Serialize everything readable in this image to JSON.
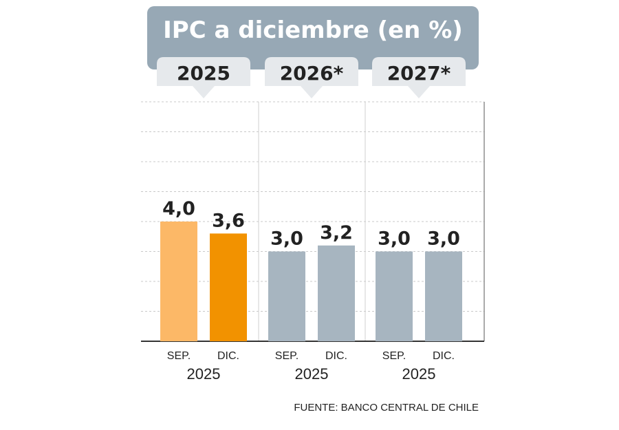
{
  "chart_data": {
    "type": "bar",
    "title": "IPC a diciembre (en %)",
    "groups": [
      {
        "label": "2025",
        "bars": [
          {
            "category": "SEP.",
            "year": "2025",
            "value": 4.0,
            "value_label": "4,0",
            "color": "#FCB867"
          },
          {
            "category": "DIC.",
            "year": "2025",
            "value": 3.6,
            "value_label": "3,6",
            "color": "#F29200"
          }
        ]
      },
      {
        "label": "2026*",
        "bars": [
          {
            "category": "SEP.",
            "year": "2025",
            "value": 3.0,
            "value_label": "3,0",
            "color": "#A7B5C0"
          },
          {
            "category": "DIC.",
            "year": "2025",
            "value": 3.2,
            "value_label": "3,2",
            "color": "#A7B5C0"
          }
        ]
      },
      {
        "label": "2027*",
        "bars": [
          {
            "category": "SEP.",
            "year": "2025",
            "value": 3.0,
            "value_label": "3,0",
            "color": "#A7B5C0"
          },
          {
            "category": "DIC.",
            "year": "2025",
            "value": 3.0,
            "value_label": "3,0",
            "color": "#A7B5C0"
          }
        ]
      }
    ],
    "ylim": [
      0,
      8
    ],
    "grid": true,
    "source": "FUENTE: BANCO CENTRAL DE CHILE"
  },
  "colors": {
    "header_bg": "#97A8B5",
    "tab_bg": "#E6E9EC",
    "text_dark": "#222222",
    "grid": "#C8C8C8"
  }
}
